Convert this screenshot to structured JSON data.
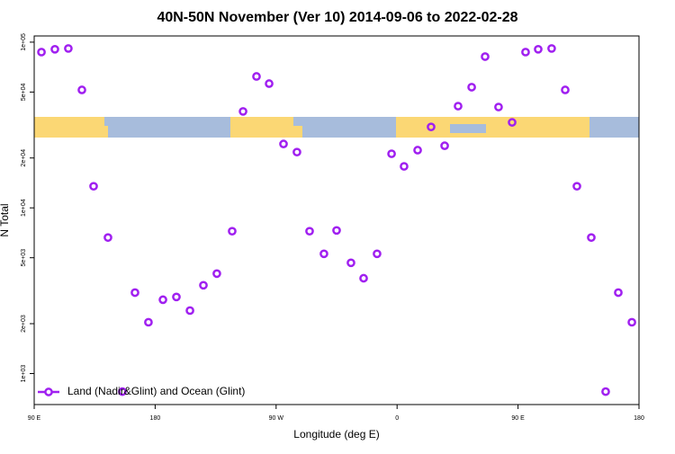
{
  "chart_data": {
    "type": "scatter",
    "title": "40N-50N November (Ver 10)   2014-09-06 to 2022-02-28",
    "xlabel": "Longitude (deg E)",
    "ylabel": "N Total",
    "log_y": true,
    "legend": "bottomleft",
    "xlim": [
      90,
      540
    ],
    "xticks": [
      {
        "value": 90,
        "label": "90 E"
      },
      {
        "value": 180,
        "label": "180"
      },
      {
        "value": 270,
        "label": "90 W"
      },
      {
        "value": 360,
        "label": "0"
      },
      {
        "value": 450,
        "label": "90 E"
      },
      {
        "value": 540,
        "label": "180"
      }
    ],
    "ylim": [
      650,
      109000
    ],
    "yticks": [
      {
        "value": 1000,
        "label": "1e+03"
      },
      {
        "value": 2000,
        "label": "2e+03"
      },
      {
        "value": 5000,
        "label": "5e+03"
      },
      {
        "value": 10000,
        "label": "1e+04"
      },
      {
        "value": 20000,
        "label": "2e+04"
      },
      {
        "value": 50000,
        "label": "5e+04"
      },
      {
        "value": 100000,
        "label": "1e+05"
      }
    ],
    "series": [
      {
        "name": "Land (Nadir&Glint) and Ocean (Glint)",
        "color": "#a020f0",
        "x": [
          95.4,
          105.4,
          115.4,
          125.5,
          134.2,
          144.9,
          155.6,
          165,
          175,
          185.8,
          195.8,
          205.9,
          215.9,
          225.9,
          237.3,
          245.4,
          255.4,
          264.8,
          275.5,
          285.5,
          294.9,
          305.6,
          315,
          325.7,
          335.1,
          345.1,
          355.9,
          365.2,
          375.3,
          385.3,
          395.4,
          405.4,
          415.5,
          425.5,
          435.5,
          445.6,
          455.6,
          465,
          475,
          485.1,
          493.8,
          504.5,
          515.2,
          524.6,
          534.7
        ],
        "values": [
          87100,
          90600,
          91600,
          51500,
          13500,
          6620,
          778,
          3080,
          2040,
          2790,
          2900,
          2400,
          3410,
          4010,
          7230,
          38200,
          62100,
          56200,
          24300,
          21700,
          7230,
          5280,
          7310,
          4660,
          3760,
          5280,
          21200,
          17800,
          22300,
          30800,
          23700,
          41100,
          53500,
          81800,
          40600,
          32800,
          87100,
          90600,
          91600,
          51500,
          13500,
          6620,
          778,
          3080,
          2040
        ]
      }
    ]
  }
}
